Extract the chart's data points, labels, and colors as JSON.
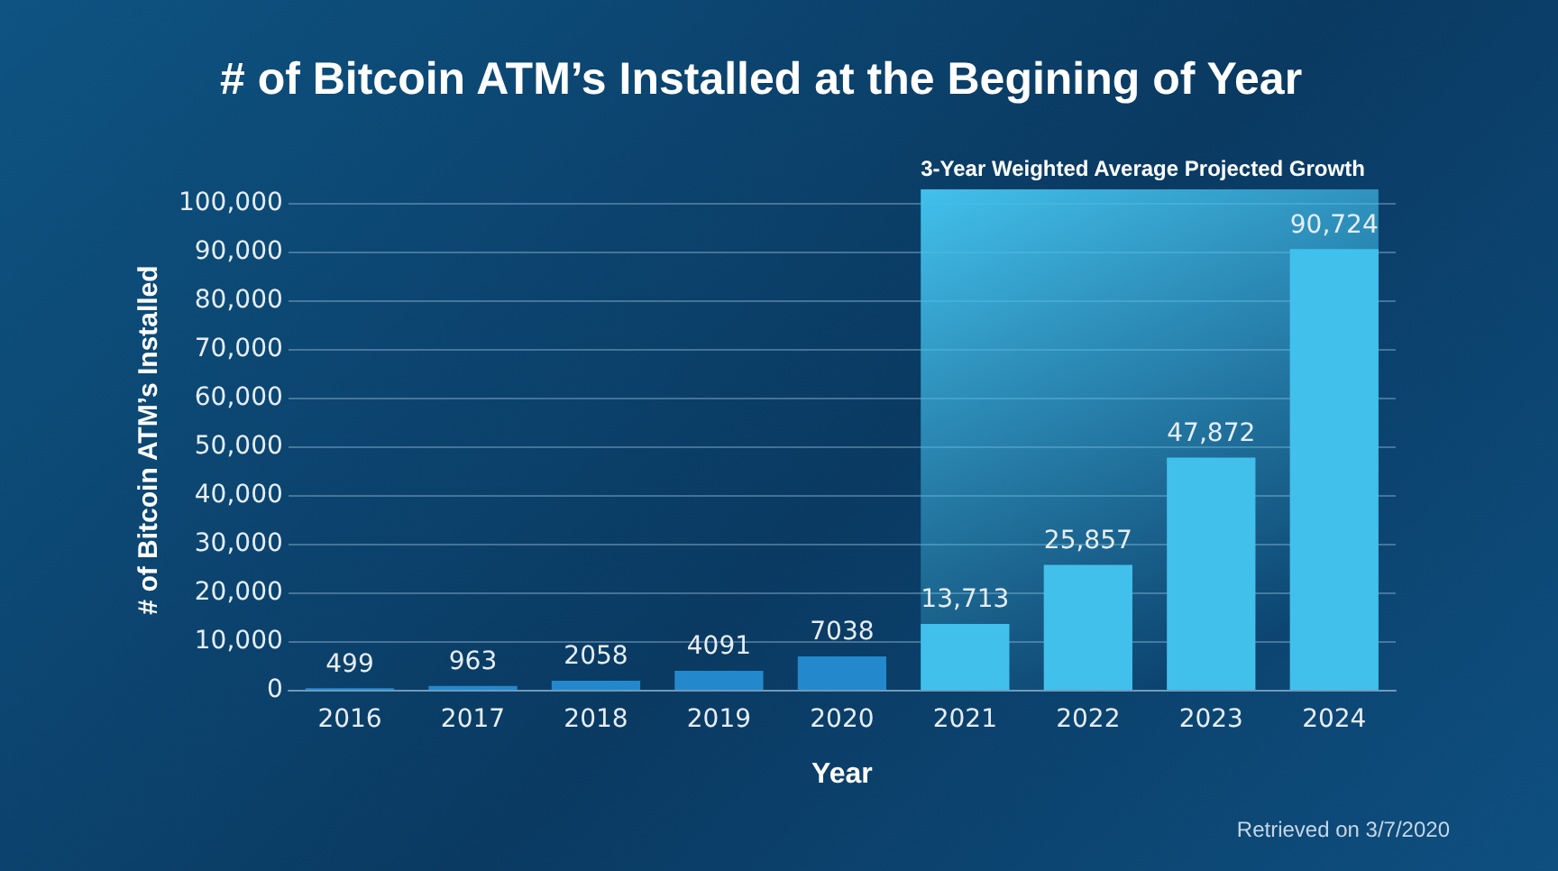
{
  "chart_data": {
    "type": "bar",
    "title": "# of Bitcoin ATM’s Installed at the Begining of Year",
    "xlabel": "Year",
    "ylabel": "# of Bitcoin ATM’s Installed",
    "categories": [
      "2016",
      "2017",
      "2018",
      "2019",
      "2020",
      "2021",
      "2022",
      "2023",
      "2024"
    ],
    "values": [
      499,
      963,
      2058,
      4091,
      7038,
      13713,
      25857,
      47872,
      90724
    ],
    "colors": [
      "#2488cc",
      "#2488cc",
      "#2488cc",
      "#2488cc",
      "#2488cc",
      "#42c0ec",
      "#42c0ec",
      "#42c0ec",
      "#42c0ec"
    ],
    "value_labels": [
      "499",
      "963",
      "2058",
      "4091",
      "7038",
      "13,713",
      "25,857",
      "47,872",
      "90,724"
    ],
    "ylim": [
      0,
      103000
    ],
    "yticks": [
      0,
      {
        "value": 10000,
        "label": "10,000"
      },
      {
        "value": 20000,
        "label": "20,000"
      },
      {
        "value": 30000,
        "label": "30,000"
      },
      {
        "value": 40000,
        "label": "40,000"
      },
      {
        "value": 50000,
        "label": "50,000"
      },
      {
        "value": 60000,
        "label": "60,000"
      },
      {
        "value": 70000,
        "label": "70,000"
      },
      {
        "value": 80000,
        "label": "80,000"
      },
      {
        "value": 90000,
        "label": "90,000"
      },
      {
        "value": 100000,
        "label": "100,000"
      }
    ],
    "grid": "y",
    "bands": [
      {
        "axis": "x",
        "from": "2021",
        "to": "2024",
        "label": "3-Year Weighted Average Projected Growth",
        "color": "#42c0ec"
      }
    ],
    "annotations": [
      "Retrieved on 3/7/2020"
    ]
  }
}
